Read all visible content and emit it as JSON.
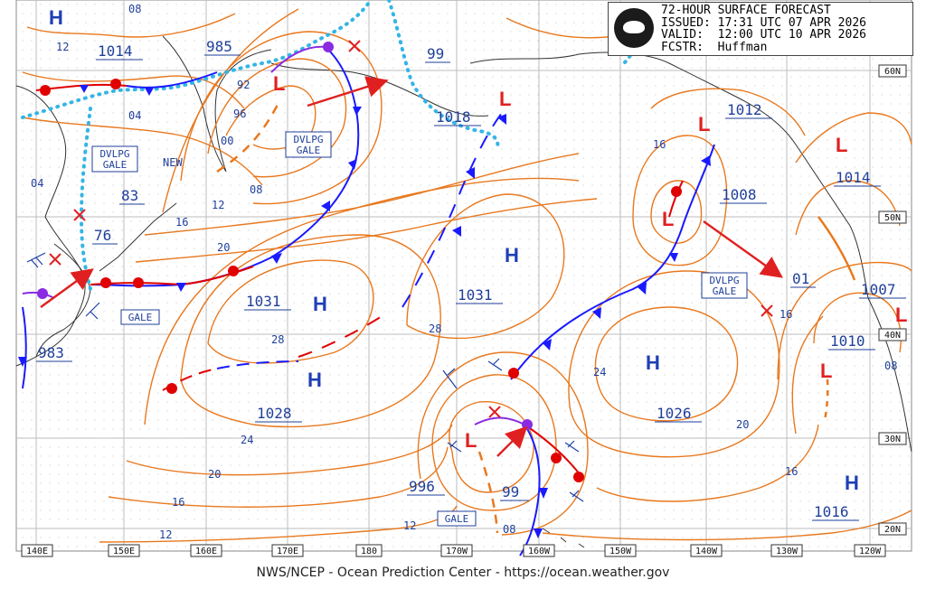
{
  "header": {
    "title": "72-HOUR SURFACE FORECAST",
    "issued": "ISSUED: 17:31 UTC 07 APR 2026",
    "valid": "VALID:  12:00 UTC 10 APR 2026",
    "fcstr": "FCSTR:  Huffman"
  },
  "footer": "NWS/NCEP - Ocean Prediction Center - https://ocean.weather.gov",
  "longitude_labels": [
    "140E",
    "150E",
    "160E",
    "170E",
    "180",
    "170W",
    "160W",
    "150W",
    "140W",
    "130W",
    "120W"
  ],
  "latitude_labels": [
    "60N",
    "50N",
    "40N",
    "30N",
    "20N"
  ],
  "high_centers": [
    {
      "symbol": "H",
      "pressure": "1014"
    },
    {
      "symbol": "H",
      "pressure": "1031"
    },
    {
      "symbol": "H",
      "pressure": "1028"
    },
    {
      "symbol": "H",
      "pressure": "1031"
    },
    {
      "symbol": "H",
      "pressure": "1026"
    },
    {
      "symbol": "H",
      "pressure": "1016"
    }
  ],
  "low_centers": [
    {
      "symbol": "L",
      "pressure": "985"
    },
    {
      "symbol": "L",
      "pressure": "1018"
    },
    {
      "symbol": "L",
      "pressure": "1012"
    },
    {
      "symbol": "L",
      "pressure": "1008"
    },
    {
      "symbol": "L",
      "pressure": "1014"
    },
    {
      "symbol": "L",
      "pressure": "1010"
    },
    {
      "symbol": "L",
      "pressure": "996"
    },
    {
      "symbol": "L",
      "pressure": "99"
    }
  ],
  "pressure_values": [
    "983",
    "76",
    "83",
    "99",
    "01",
    "1007"
  ],
  "warnings": [
    "DVLPG GALE",
    "DVLPG GALE",
    "DVLPG GALE",
    "GALE",
    "GALE"
  ],
  "isobar_labels": [
    "08",
    "12",
    "92",
    "96",
    "00",
    "04",
    "04",
    "NEW",
    "08",
    "12",
    "16",
    "20",
    "28",
    "24",
    "20",
    "16",
    "12",
    "28",
    "24",
    "20",
    "16",
    "16",
    "08",
    "12",
    "16",
    "08"
  ],
  "colors": {
    "isobar": "#e8781e",
    "pressure_text": "#1f3f9a",
    "symbol": "#1e3fb5",
    "cold_front": "#1a1aff",
    "warm_front": "#e00000",
    "occluded_front": "#8a2be2",
    "ice_edge": "#33b5e5",
    "arrow": "#e02020",
    "coast": "#222222",
    "grid": "#bdbdbd"
  }
}
